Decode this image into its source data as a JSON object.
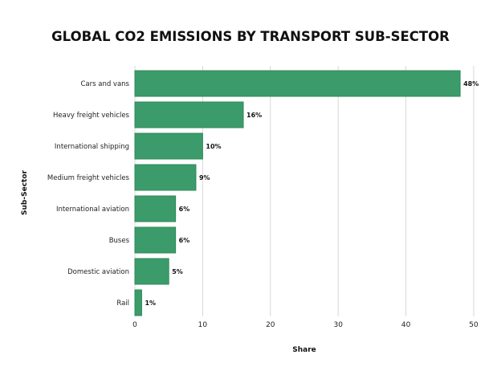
{
  "chart_data": {
    "type": "bar",
    "orientation": "horizontal",
    "title": "GLOBAL CO2 EMISSIONS BY TRANSPORT SUB-SECTOR",
    "xlabel": "Share",
    "ylabel": "Sub-Sector",
    "categories": [
      "Cars and vans",
      "Heavy freight vehicles",
      "International shipping",
      "Medium freight vehicles",
      "International aviation",
      "Buses",
      "Domestic aviation",
      "Rail"
    ],
    "values": [
      48,
      16,
      10,
      9,
      6,
      6,
      5,
      1
    ],
    "data_labels": [
      "48%",
      "16%",
      "10%",
      "9%",
      "6%",
      "6%",
      "5%",
      "1%"
    ],
    "xlim": [
      0,
      50
    ],
    "xticks": [
      0,
      10,
      20,
      30,
      40,
      50
    ],
    "grid": "vertical",
    "colors": {
      "bar": "#3c9b6a",
      "bar_edge": "#2e8a5a",
      "grid": "#d9d9d9",
      "text": "#111111"
    }
  }
}
